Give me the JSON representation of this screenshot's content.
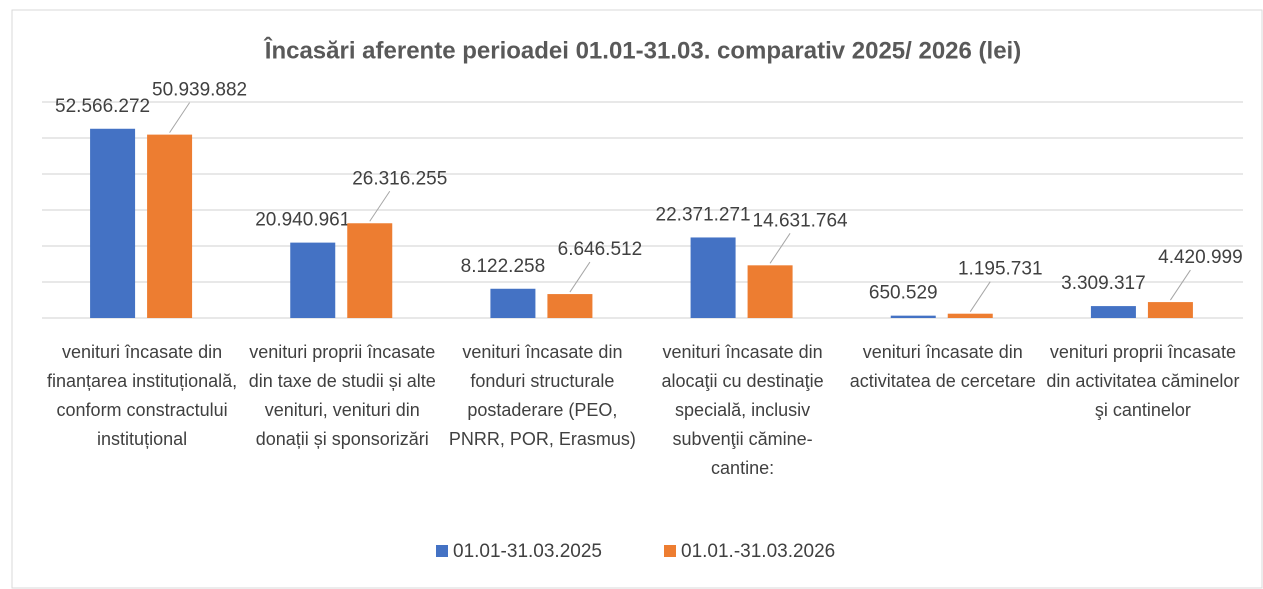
{
  "chart_data": {
    "type": "bar",
    "title": "Încasări aferente perioadei 01.01-31.03. comparativ 2025/ 2026 (lei)",
    "categories": [
      "venituri încasate din finanțarea instituțională, conform constractului instituțional",
      "venituri proprii încasate din taxe de studii și alte venituri, venituri din donații și sponsorizări",
      "venituri încasate din fonduri structurale postaderare (PEO, PNRR, POR, Erasmus)",
      "venituri încasate din alocaţii cu destinaţie specială, inclusiv subvenţii cămine-cantine:",
      "venituri încasate din activitatea de cercetare",
      "venituri proprii încasate din activitatea căminelor şi cantinelor"
    ],
    "series": [
      {
        "name": "01.01-31.03.2025",
        "color": "#4472c4",
        "values": [
          52566272,
          20940961,
          8122258,
          22371271,
          650529,
          3309317
        ],
        "value_labels": [
          "52.566.272",
          "20.940.961",
          "8.122.258",
          "22.371.271",
          "650.529",
          "3.309.317"
        ]
      },
      {
        "name": "01.01.-31.03.2026",
        "color": "#ed7d31",
        "values": [
          50939882,
          26316255,
          6646512,
          14631764,
          1195731,
          4420999
        ],
        "value_labels": [
          "50.939.882",
          "26.316.255",
          "6.646.512",
          "14.631.764",
          "1.195.731",
          "4.420.999"
        ]
      }
    ],
    "ylim": [
      0,
      60000000
    ],
    "yticks": [
      0,
      10000000,
      20000000,
      30000000,
      40000000,
      50000000,
      60000000
    ],
    "grid": true,
    "legend": "bottom"
  }
}
